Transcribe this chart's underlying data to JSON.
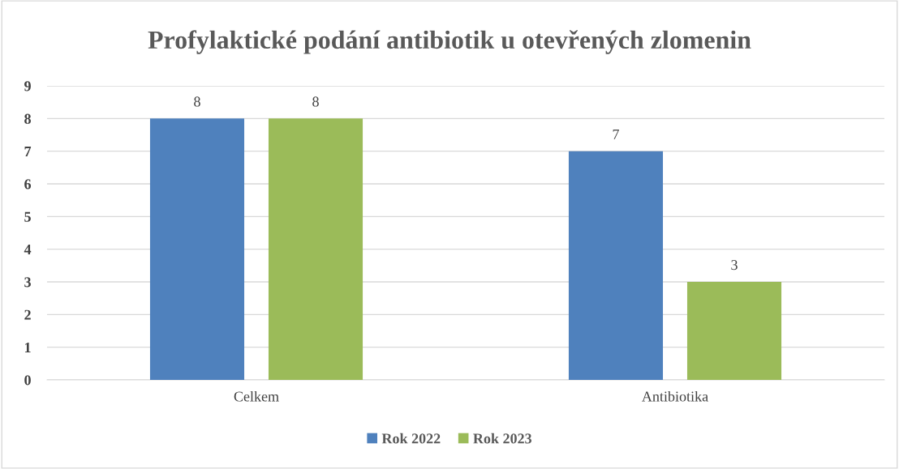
{
  "chart_data": {
    "type": "bar",
    "title": "Profylaktické podání antibiotik u otevřených zlomenin",
    "categories": [
      "Celkem",
      "Antibiotika"
    ],
    "series": [
      {
        "name": "Rok 2022",
        "color": "#4f81bd",
        "values": [
          8,
          7
        ]
      },
      {
        "name": "Rok 2023",
        "color": "#9bbb59",
        "values": [
          8,
          3
        ]
      }
    ],
    "ylim": [
      0,
      9
    ],
    "yticks": [
      0,
      1,
      2,
      3,
      4,
      5,
      6,
      7,
      8,
      9
    ],
    "grid": "y",
    "legend": "bottom",
    "data_labels": true
  }
}
